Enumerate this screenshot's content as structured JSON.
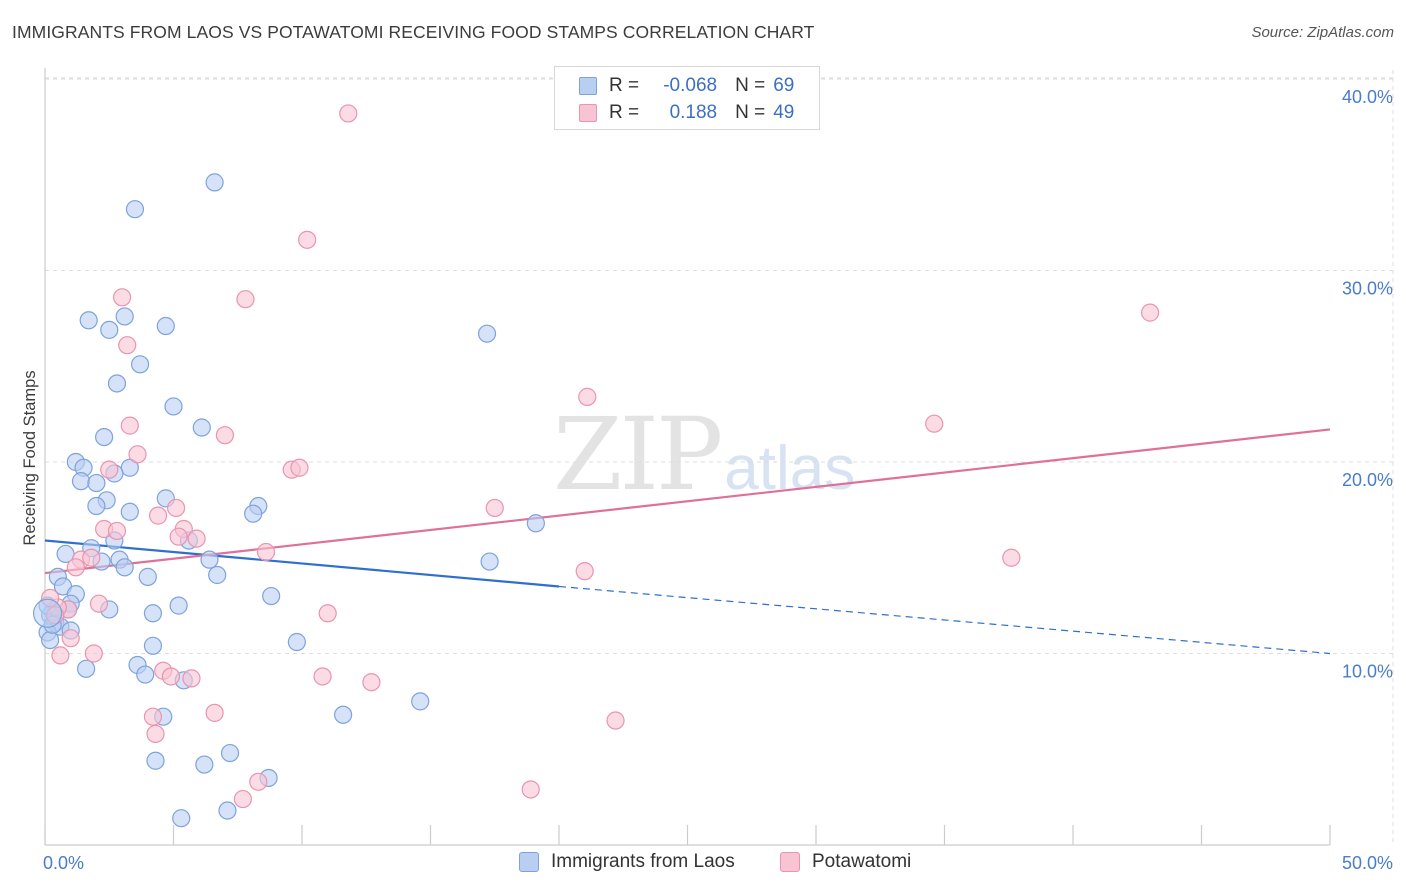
{
  "header": {
    "title": "IMMIGRANTS FROM LAOS VS POTAWATOMI RECEIVING FOOD STAMPS CORRELATION CHART",
    "source": "Source: ZipAtlas.com"
  },
  "watermark": {
    "zip": "ZIP",
    "atlas": "atlas"
  },
  "legend": {
    "rows": [
      {
        "r_label": "R =",
        "r_value": "-0.068",
        "n_label": "N =",
        "n_value": "69"
      },
      {
        "r_label": "R =",
        "r_value": "0.188",
        "n_label": "N =",
        "n_value": "49"
      }
    ]
  },
  "bottom_legend": [
    "Immigrants from Laos",
    "Potawatomi"
  ],
  "colors": {
    "blue_fill": "#b9cff2",
    "blue_stroke": "#7ea3dc",
    "blue_line": "#2f6fce",
    "pink_fill": "#f8c4d4",
    "pink_stroke": "#e994b0",
    "pink_line": "#e07097",
    "grid": "#dddddd",
    "axis_label": "#4a7cc8"
  },
  "chart_data": {
    "type": "scatter",
    "title": "IMMIGRANTS FROM LAOS VS POTAWATOMI RECEIVING FOOD STAMPS CORRELATION CHART",
    "xlabel": "",
    "ylabel": "Receiving Food Stamps",
    "xlim": [
      0,
      50
    ],
    "ylim": [
      0,
      41.2
    ],
    "x_tick_labels": [
      "0.0%",
      "50.0%"
    ],
    "y_ticks": [
      10,
      20,
      30,
      40
    ],
    "y_tick_labels": [
      "10.0%",
      "20.0%",
      "30.0%",
      "40.0%"
    ],
    "grid": true,
    "series": [
      {
        "name": "Immigrants from Laos",
        "r": -0.068,
        "n": 69,
        "trend": {
          "x": [
            0,
            20
          ],
          "y": [
            15.9,
            13.5
          ],
          "dashed_to_x": 50,
          "dashed_to_y": 10.0
        },
        "points": [
          [
            6.6,
            34.6
          ],
          [
            3.5,
            33.2
          ],
          [
            4.7,
            27.1
          ],
          [
            3.1,
            27.6
          ],
          [
            2.5,
            26.9
          ],
          [
            1.7,
            27.4
          ],
          [
            3.7,
            25.1
          ],
          [
            2.8,
            24.1
          ],
          [
            5.0,
            22.9
          ],
          [
            6.1,
            21.8
          ],
          [
            2.3,
            21.3
          ],
          [
            1.2,
            20.0
          ],
          [
            1.5,
            19.7
          ],
          [
            3.3,
            19.7
          ],
          [
            2.7,
            19.4
          ],
          [
            1.4,
            19.0
          ],
          [
            2.0,
            18.9
          ],
          [
            4.7,
            18.1
          ],
          [
            2.4,
            18.0
          ],
          [
            2.0,
            17.7
          ],
          [
            8.3,
            17.7
          ],
          [
            3.3,
            17.4
          ],
          [
            8.1,
            17.3
          ],
          [
            2.7,
            15.9
          ],
          [
            5.6,
            15.9
          ],
          [
            1.8,
            15.5
          ],
          [
            0.8,
            15.2
          ],
          [
            2.9,
            14.9
          ],
          [
            2.2,
            14.8
          ],
          [
            6.4,
            14.9
          ],
          [
            3.1,
            14.5
          ],
          [
            4.0,
            14.0
          ],
          [
            6.7,
            14.1
          ],
          [
            0.5,
            14.0
          ],
          [
            0.7,
            13.5
          ],
          [
            1.2,
            13.1
          ],
          [
            1.0,
            12.6
          ],
          [
            0.9,
            12.3
          ],
          [
            0.3,
            12.2
          ],
          [
            0.2,
            12.0
          ],
          [
            0.4,
            11.6
          ],
          [
            0.6,
            11.4
          ],
          [
            0.1,
            11.1
          ],
          [
            1.0,
            11.2
          ],
          [
            2.5,
            12.3
          ],
          [
            4.2,
            12.1
          ],
          [
            5.2,
            12.5
          ],
          [
            8.8,
            13.0
          ],
          [
            0.2,
            10.7
          ],
          [
            4.2,
            10.4
          ],
          [
            9.8,
            10.6
          ],
          [
            1.6,
            9.2
          ],
          [
            3.6,
            9.4
          ],
          [
            3.9,
            8.9
          ],
          [
            5.4,
            8.6
          ],
          [
            11.6,
            6.8
          ],
          [
            14.6,
            7.5
          ],
          [
            4.6,
            6.7
          ],
          [
            7.2,
            4.8
          ],
          [
            4.3,
            4.4
          ],
          [
            6.2,
            4.2
          ],
          [
            8.7,
            3.5
          ],
          [
            7.1,
            1.8
          ],
          [
            5.3,
            1.4
          ],
          [
            17.3,
            14.8
          ],
          [
            19.1,
            16.8
          ],
          [
            17.2,
            26.7
          ],
          [
            0.1,
            12.5
          ],
          [
            0.3,
            11.5
          ]
        ]
      },
      {
        "name": "Potawatomi",
        "r": 0.188,
        "n": 49,
        "trend": {
          "x": [
            0,
            50
          ],
          "y": [
            14.2,
            21.7
          ]
        },
        "points": [
          [
            11.8,
            38.2
          ],
          [
            10.2,
            31.6
          ],
          [
            3.0,
            28.6
          ],
          [
            7.8,
            28.5
          ],
          [
            3.2,
            26.1
          ],
          [
            43.0,
            27.8
          ],
          [
            21.1,
            23.4
          ],
          [
            3.3,
            21.9
          ],
          [
            7.0,
            21.4
          ],
          [
            34.6,
            22.0
          ],
          [
            3.6,
            20.4
          ],
          [
            2.5,
            19.6
          ],
          [
            9.6,
            19.6
          ],
          [
            9.9,
            19.7
          ],
          [
            17.5,
            17.6
          ],
          [
            5.1,
            17.6
          ],
          [
            4.4,
            17.2
          ],
          [
            2.3,
            16.5
          ],
          [
            2.8,
            16.4
          ],
          [
            5.4,
            16.5
          ],
          [
            5.2,
            16.1
          ],
          [
            5.9,
            16.0
          ],
          [
            8.6,
            15.3
          ],
          [
            1.4,
            14.9
          ],
          [
            1.8,
            15.0
          ],
          [
            1.2,
            14.5
          ],
          [
            37.6,
            15.0
          ],
          [
            21.0,
            14.3
          ],
          [
            2.1,
            12.6
          ],
          [
            11.0,
            12.1
          ],
          [
            0.9,
            12.3
          ],
          [
            0.5,
            12.4
          ],
          [
            0.2,
            12.9
          ],
          [
            1.0,
            10.8
          ],
          [
            0.6,
            9.9
          ],
          [
            1.9,
            10.0
          ],
          [
            4.6,
            9.1
          ],
          [
            4.9,
            8.8
          ],
          [
            5.7,
            8.7
          ],
          [
            10.8,
            8.8
          ],
          [
            12.7,
            8.5
          ],
          [
            6.6,
            6.9
          ],
          [
            4.2,
            6.7
          ],
          [
            4.3,
            5.8
          ],
          [
            22.2,
            6.5
          ],
          [
            8.3,
            3.3
          ],
          [
            7.7,
            2.4
          ],
          [
            18.9,
            2.9
          ],
          [
            0.4,
            12.0
          ]
        ]
      }
    ]
  }
}
